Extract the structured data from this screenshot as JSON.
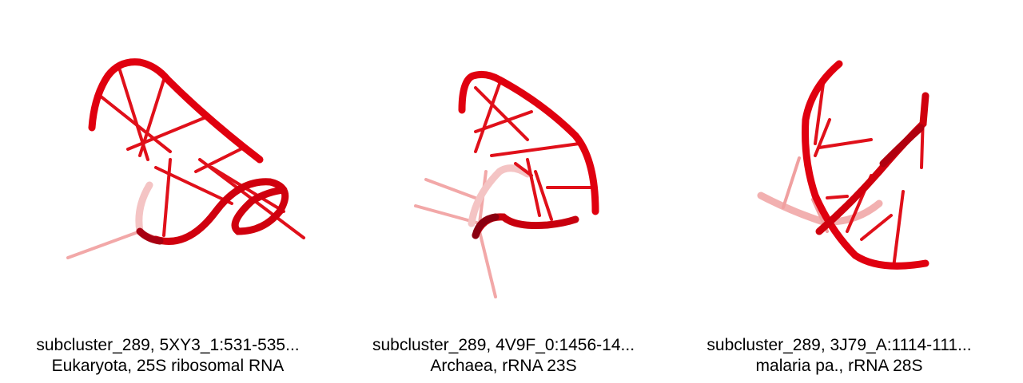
{
  "panels": [
    {
      "line1": "subcluster_289, 5XY3_1:531-535...",
      "line2": "Eukaryota, 25S ribosomal RNA"
    },
    {
      "line1": "subcluster_289, 4V9F_0:1456-14...",
      "line2": "Archaea, rRNA 23S"
    },
    {
      "line1": "subcluster_289, 3J79_A:1114-111...",
      "line2": "malaria pa., rRNA 28S"
    }
  ],
  "colors": {
    "backbone": "#e0000f",
    "backbone_dark": "#9b0010",
    "fade": "#f4b0b0"
  }
}
